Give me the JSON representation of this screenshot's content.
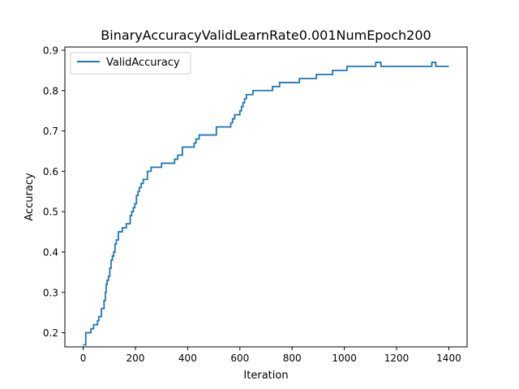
{
  "chart_data": {
    "type": "line",
    "title": "BinaryAccuracyValidLearnRate0.001NumEpoch200",
    "xlabel": "Iteration",
    "ylabel": "Accuracy",
    "xlim": [
      -70,
      1470
    ],
    "ylim": [
      0.165,
      0.908
    ],
    "xticks": [
      0,
      200,
      400,
      600,
      800,
      1000,
      1200,
      1400
    ],
    "yticks": [
      0.2,
      0.3,
      0.4,
      0.5,
      0.6,
      0.7,
      0.8,
      0.9
    ],
    "xtick_labels": [
      "0",
      "200",
      "400",
      "600",
      "800",
      "1000",
      "1200",
      "1400"
    ],
    "ytick_labels": [
      "0.2",
      "0.3",
      "0.4",
      "0.5",
      "0.6",
      "0.7",
      "0.8",
      "0.9"
    ],
    "grid": false,
    "legend": "upper-left",
    "series": [
      {
        "name": "ValidAccuracy",
        "color": "#1f77b4",
        "step": true,
        "x": [
          0,
          10,
          30,
          40,
          55,
          60,
          70,
          80,
          85,
          88,
          92,
          97,
          102,
          107,
          112,
          117,
          122,
          127,
          135,
          150,
          165,
          180,
          186,
          192,
          198,
          204,
          210,
          215,
          222,
          230,
          246,
          260,
          270,
          300,
          350,
          362,
          372,
          380,
          425,
          432,
          438,
          444,
          510,
          565,
          572,
          580,
          600,
          606,
          612,
          618,
          625,
          640,
          650,
          725,
          752,
          828,
          893,
          955,
          1010,
          1120,
          1125,
          1140,
          1335,
          1350,
          1400
        ],
        "values": [
          0.17,
          0.2,
          0.21,
          0.22,
          0.23,
          0.24,
          0.26,
          0.28,
          0.3,
          0.32,
          0.33,
          0.34,
          0.36,
          0.38,
          0.39,
          0.4,
          0.42,
          0.43,
          0.45,
          0.46,
          0.47,
          0.49,
          0.5,
          0.51,
          0.52,
          0.54,
          0.55,
          0.56,
          0.57,
          0.58,
          0.6,
          0.61,
          0.61,
          0.62,
          0.63,
          0.64,
          0.64,
          0.66,
          0.67,
          0.68,
          0.68,
          0.69,
          0.71,
          0.72,
          0.73,
          0.74,
          0.75,
          0.76,
          0.77,
          0.78,
          0.79,
          0.79,
          0.8,
          0.81,
          0.82,
          0.83,
          0.84,
          0.85,
          0.86,
          0.87,
          0.87,
          0.86,
          0.87,
          0.86,
          0.86
        ]
      }
    ]
  }
}
